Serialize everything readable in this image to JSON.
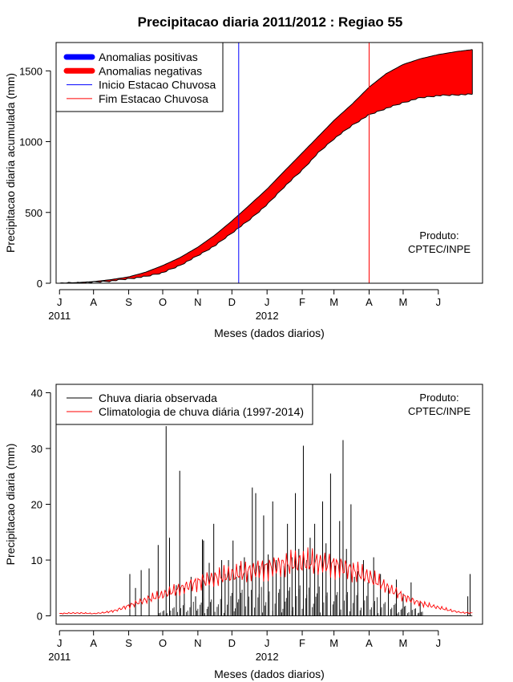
{
  "title": "Precipitacao diaria 2011/2012 : Regiao 55",
  "product": {
    "line1": "Produto:",
    "line2": "CPTEC/INPE"
  },
  "chart_data": [
    {
      "type": "area",
      "xlabel": "Meses (dados diarios)",
      "ylabel": "Precipitacao diaria acumulada (mm)",
      "ylim": [
        0,
        1700
      ],
      "yticks": [
        0,
        500,
        1000,
        1500
      ],
      "xlim_days": [
        -3,
        373
      ],
      "month_ticks": [
        {
          "label": "J",
          "day": 0
        },
        {
          "label": "A",
          "day": 30
        },
        {
          "label": "S",
          "day": 61
        },
        {
          "label": "O",
          "day": 91
        },
        {
          "label": "N",
          "day": 122
        },
        {
          "label": "D",
          "day": 152
        },
        {
          "label": "J",
          "day": 183
        },
        {
          "label": "F",
          "day": 214
        },
        {
          "label": "M",
          "day": 242
        },
        {
          "label": "A",
          "day": 273
        },
        {
          "label": "M",
          "day": 303
        },
        {
          "label": "J",
          "day": 334
        }
      ],
      "year_labels": [
        {
          "label": "2011",
          "day": 0
        },
        {
          "label": "2012",
          "day": 183
        }
      ],
      "legend": [
        {
          "label": "Anomalias positivas",
          "color": "#0000ff",
          "kind": "thick"
        },
        {
          "label": "Anomalias negativas",
          "color": "#ff0000",
          "kind": "thick"
        },
        {
          "label": "Inicio Estacao Chuvosa",
          "color": "#0000ff",
          "kind": "thin"
        },
        {
          "label": "Fim Estacao Chuvosa",
          "color": "#ff0000",
          "kind": "thin"
        }
      ],
      "season_start_day": 158,
      "season_end_day": 273,
      "climatology_cumulative": {
        "days": [
          0,
          15,
          30,
          45,
          61,
          76,
          91,
          106,
          122,
          137,
          152,
          167,
          183,
          198,
          214,
          228,
          242,
          258,
          273,
          288,
          303,
          318,
          334,
          349,
          364
        ],
        "values": [
          0,
          4,
          12,
          25,
          45,
          78,
          125,
          180,
          255,
          340,
          440,
          548,
          665,
          790,
          920,
          1035,
          1150,
          1265,
          1385,
          1480,
          1545,
          1585,
          1615,
          1635,
          1650
        ]
      },
      "observed_cumulative": {
        "days": [
          0,
          15,
          30,
          45,
          61,
          76,
          91,
          106,
          122,
          137,
          152,
          167,
          183,
          198,
          214,
          228,
          242,
          258,
          273,
          288,
          303,
          318,
          334,
          349,
          364
        ],
        "values": [
          0,
          3,
          8,
          15,
          32,
          48,
          75,
          125,
          195,
          265,
          355,
          445,
          555,
          680,
          800,
          920,
          1020,
          1115,
          1190,
          1235,
          1275,
          1310,
          1325,
          1330,
          1335
        ]
      }
    },
    {
      "type": "line",
      "xlabel": "Meses (dados diarios)",
      "ylabel": "Precipitacao diaria (mm)",
      "ylim": [
        -1.5,
        41.5
      ],
      "yticks": [
        0,
        10,
        20,
        30,
        40
      ],
      "xlim_days": [
        -3,
        373
      ],
      "month_ticks": [
        {
          "label": "J",
          "day": 0
        },
        {
          "label": "A",
          "day": 30
        },
        {
          "label": "S",
          "day": 61
        },
        {
          "label": "O",
          "day": 91
        },
        {
          "label": "N",
          "day": 122
        },
        {
          "label": "D",
          "day": 152
        },
        {
          "label": "J",
          "day": 183
        },
        {
          "label": "F",
          "day": 214
        },
        {
          "label": "M",
          "day": 242
        },
        {
          "label": "A",
          "day": 273
        },
        {
          "label": "M",
          "day": 303
        },
        {
          "label": "J",
          "day": 334
        }
      ],
      "year_labels": [
        {
          "label": "2011",
          "day": 0
        },
        {
          "label": "2012",
          "day": 183
        }
      ],
      "legend": [
        {
          "label": "Chuva diaria observada",
          "color": "#000000"
        },
        {
          "label": "Climatologia de chuva diária (1997-2014)",
          "color": "#ff0000"
        }
      ],
      "observed_daily_spikes": [
        {
          "day": 62,
          "value": 7.5
        },
        {
          "day": 67,
          "value": 5
        },
        {
          "day": 72,
          "value": 8.2
        },
        {
          "day": 79,
          "value": 8.5
        },
        {
          "day": 87,
          "value": 12.7
        },
        {
          "day": 94,
          "value": 34
        },
        {
          "day": 97,
          "value": 14
        },
        {
          "day": 103,
          "value": 5.5
        },
        {
          "day": 106,
          "value": 26
        },
        {
          "day": 110,
          "value": 5
        },
        {
          "day": 116,
          "value": 7
        },
        {
          "day": 120,
          "value": 3.5
        },
        {
          "day": 126,
          "value": 13.7
        },
        {
          "day": 127,
          "value": 13.5
        },
        {
          "day": 132,
          "value": 9.5
        },
        {
          "day": 136,
          "value": 16.5
        },
        {
          "day": 143,
          "value": 10
        },
        {
          "day": 146,
          "value": 7.5
        },
        {
          "day": 149,
          "value": 10
        },
        {
          "day": 153,
          "value": 13.5
        },
        {
          "day": 156,
          "value": 7
        },
        {
          "day": 159,
          "value": 9
        },
        {
          "day": 163,
          "value": 10.5
        },
        {
          "day": 166,
          "value": 8
        },
        {
          "day": 170,
          "value": 23
        },
        {
          "day": 173,
          "value": 22
        },
        {
          "day": 176,
          "value": 9
        },
        {
          "day": 180,
          "value": 18
        },
        {
          "day": 184,
          "value": 11
        },
        {
          "day": 188,
          "value": 20.5
        },
        {
          "day": 191,
          "value": 10
        },
        {
          "day": 195,
          "value": 7.5
        },
        {
          "day": 198,
          "value": 9
        },
        {
          "day": 201,
          "value": 16.5
        },
        {
          "day": 205,
          "value": 10.5
        },
        {
          "day": 208,
          "value": 22
        },
        {
          "day": 211,
          "value": 12
        },
        {
          "day": 215,
          "value": 30.5
        },
        {
          "day": 218,
          "value": 10
        },
        {
          "day": 221,
          "value": 14
        },
        {
          "day": 225,
          "value": 16.5
        },
        {
          "day": 228,
          "value": 8
        },
        {
          "day": 232,
          "value": 20.5
        },
        {
          "day": 235,
          "value": 13
        },
        {
          "day": 239,
          "value": 25.5
        },
        {
          "day": 243,
          "value": 9
        },
        {
          "day": 247,
          "value": 17
        },
        {
          "day": 250,
          "value": 31.5
        },
        {
          "day": 253,
          "value": 12
        },
        {
          "day": 257,
          "value": 20
        },
        {
          "day": 260,
          "value": 7
        },
        {
          "day": 263,
          "value": 8
        },
        {
          "day": 268,
          "value": 10
        },
        {
          "day": 272,
          "value": 6
        },
        {
          "day": 277,
          "value": 10.5
        },
        {
          "day": 283,
          "value": 7.5
        },
        {
          "day": 290,
          "value": 5
        },
        {
          "day": 297,
          "value": 6.5
        },
        {
          "day": 303,
          "value": 4
        },
        {
          "day": 310,
          "value": 6
        },
        {
          "day": 318,
          "value": 2.5
        },
        {
          "day": 360,
          "value": 3.5
        },
        {
          "day": 362,
          "value": 7.5
        }
      ],
      "climatology_daily": {
        "days": [
          0,
          10,
          20,
          30,
          40,
          50,
          61,
          71,
          81,
          91,
          101,
          111,
          122,
          132,
          142,
          152,
          162,
          172,
          183,
          193,
          203,
          214,
          224,
          234,
          242,
          252,
          262,
          273,
          283,
          293,
          303,
          313,
          323,
          334,
          344,
          354,
          364
        ],
        "values": [
          0.4,
          0.5,
          0.5,
          0.4,
          0.6,
          1.0,
          1.8,
          2.5,
          3.2,
          3.8,
          4.5,
          5.2,
          6.0,
          6.6,
          7.0,
          7.4,
          7.8,
          8.2,
          8.6,
          9.0,
          9.3,
          9.6,
          9.6,
          9.4,
          9.1,
          8.6,
          7.8,
          7.0,
          5.8,
          4.6,
          3.5,
          2.6,
          2.0,
          1.5,
          1.0,
          0.6,
          0.5
        ]
      }
    }
  ]
}
